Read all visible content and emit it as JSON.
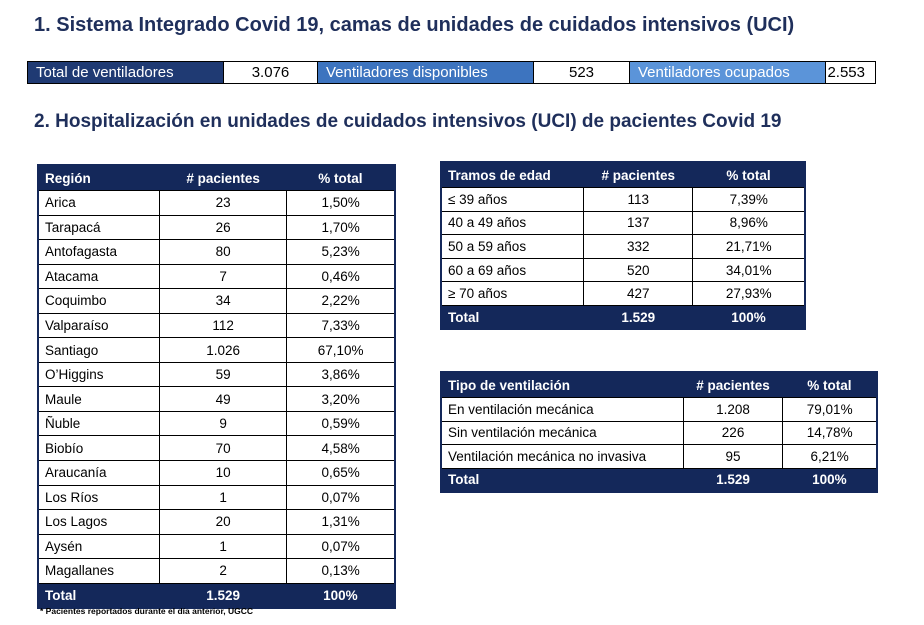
{
  "section1": {
    "title": "1. Sistema Integrado Covid 19, camas de unidades de cuidados intensivos (UCI)"
  },
  "summary": {
    "total_label": "Total de ventiladores",
    "total_value": "3.076",
    "available_label": "Ventiladores disponibles",
    "available_value": "523",
    "occupied_label": "Ventiladores ocupados",
    "occupied_value": "2.553"
  },
  "section2": {
    "title": "2. Hospitalización en unidades de cuidados intensivos (UCI) de pacientes Covid 19"
  },
  "region_table": {
    "headers": [
      "Región",
      "# pacientes",
      "% total"
    ],
    "rows": [
      [
        "Arica",
        "23",
        "1,50%"
      ],
      [
        "Tarapacá",
        "26",
        "1,70%"
      ],
      [
        "Antofagasta",
        "80",
        "5,23%"
      ],
      [
        "Atacama",
        "7",
        "0,46%"
      ],
      [
        "Coquimbo",
        "34",
        "2,22%"
      ],
      [
        "Valparaíso",
        "112",
        "7,33%"
      ],
      [
        "Santiago",
        "1.026",
        "67,10%"
      ],
      [
        "O’Higgins",
        "59",
        "3,86%"
      ],
      [
        "Maule",
        "49",
        "3,20%"
      ],
      [
        "Ñuble",
        "9",
        "0,59%"
      ],
      [
        "Biobío",
        "70",
        "4,58%"
      ],
      [
        "Araucanía",
        "10",
        "0,65%"
      ],
      [
        "Los Ríos",
        "1",
        "0,07%"
      ],
      [
        "Los Lagos",
        "20",
        "1,31%"
      ],
      [
        "Aysén",
        "1",
        "0,07%"
      ],
      [
        "Magallanes",
        "2",
        "0,13%"
      ]
    ],
    "total": [
      "Total",
      "1.529",
      "100%"
    ]
  },
  "age_table": {
    "headers": [
      "Tramos de edad",
      "# pacientes",
      "% total"
    ],
    "rows": [
      [
        "≤ 39 años",
        "113",
        "7,39%"
      ],
      [
        "40 a 49 años",
        "137",
        "8,96%"
      ],
      [
        "50 a 59 años",
        "332",
        "21,71%"
      ],
      [
        "60 a 69 años",
        "520",
        "34,01%"
      ],
      [
        "≥ 70 años",
        "427",
        "27,93%"
      ]
    ],
    "total": [
      "Total",
      "1.529",
      "100%"
    ]
  },
  "vent_table": {
    "headers": [
      "Tipo de ventilación",
      "# pacientes",
      "% total"
    ],
    "rows": [
      [
        "En ventilación mecánica",
        "1.208",
        "79,01%"
      ],
      [
        "Sin ventilación mecánica",
        "226",
        "14,78%"
      ],
      [
        "Ventilación mecánica no invasiva",
        "95",
        "6,21%"
      ]
    ],
    "total": [
      "Total",
      "1.529",
      "100%"
    ]
  },
  "footnote": "* Pacientes reportados durante el día anterior, UGCC"
}
